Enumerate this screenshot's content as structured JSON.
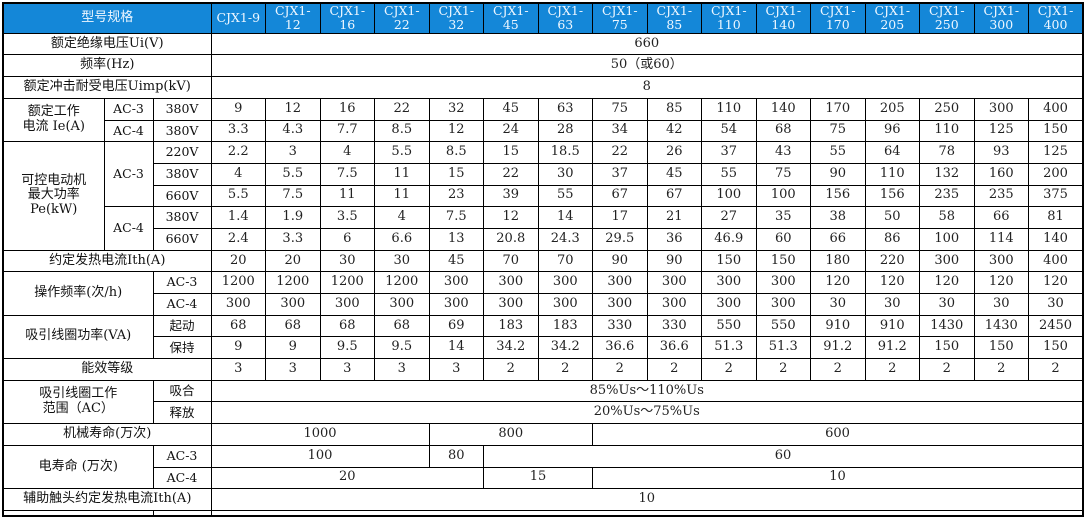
{
  "table": {
    "title_cell": "型号规格",
    "models": [
      "CJX1-9",
      "CJX1-12",
      "CJX1-16",
      "CJX1-22",
      "CJX1-32",
      "CJX1-45",
      "CJX1-63",
      "CJX1-75",
      "CJX1-85",
      "CJX1-110",
      "CJX1-140",
      "CJX1-170",
      "CJX1-205",
      "CJX1-250",
      "CJX1-300",
      "CJX1-400"
    ],
    "header_bg_color": "#1487d8",
    "header_text_color": "#eef7ff",
    "body": [
      [
        {
          "t": "额定绝缘电压Ui(V)",
          "cs": 3,
          "k": "lbl"
        },
        {
          "t": "660",
          "cs": 16
        }
      ],
      [
        {
          "t": "频率(Hz)",
          "cs": 3,
          "k": "lbl"
        },
        {
          "t": "50（或60）",
          "cs": 16
        }
      ],
      [
        {
          "t": "额定冲击耐受电压Uimp(kV)",
          "cs": 3,
          "k": "lbl"
        },
        {
          "t": "8",
          "cs": 16
        }
      ],
      [
        {
          "t": "额定工作\n电流 Ie(A)",
          "rs": 2,
          "k": "lbl"
        },
        {
          "t": "AC-3",
          "k": "sub"
        },
        {
          "t": "380V",
          "k": "sub"
        },
        {
          "t": "9"
        },
        {
          "t": "12"
        },
        {
          "t": "16"
        },
        {
          "t": "22"
        },
        {
          "t": "32"
        },
        {
          "t": "45"
        },
        {
          "t": "63"
        },
        {
          "t": "75"
        },
        {
          "t": "85"
        },
        {
          "t": "110"
        },
        {
          "t": "140"
        },
        {
          "t": "170"
        },
        {
          "t": "205"
        },
        {
          "t": "250"
        },
        {
          "t": "300"
        },
        {
          "t": "400"
        }
      ],
      [
        {
          "t": "AC-4",
          "k": "sub"
        },
        {
          "t": "380V",
          "k": "sub"
        },
        {
          "t": "3.3"
        },
        {
          "t": "4.3"
        },
        {
          "t": "7.7"
        },
        {
          "t": "8.5"
        },
        {
          "t": "12"
        },
        {
          "t": "24"
        },
        {
          "t": "28"
        },
        {
          "t": "34"
        },
        {
          "t": "42"
        },
        {
          "t": "54"
        },
        {
          "t": "68"
        },
        {
          "t": "75"
        },
        {
          "t": "96"
        },
        {
          "t": "110"
        },
        {
          "t": "125"
        },
        {
          "t": "150"
        }
      ],
      [
        {
          "t": "可控电动机\n最大功率\nPe(kW)",
          "rs": 5,
          "k": "lbl"
        },
        {
          "t": "AC-3",
          "rs": 3,
          "k": "sub"
        },
        {
          "t": "220V",
          "k": "sub"
        },
        {
          "t": "2.2"
        },
        {
          "t": "3"
        },
        {
          "t": "4"
        },
        {
          "t": "5.5"
        },
        {
          "t": "8.5"
        },
        {
          "t": "15"
        },
        {
          "t": "18.5"
        },
        {
          "t": "22"
        },
        {
          "t": "26"
        },
        {
          "t": "37"
        },
        {
          "t": "43"
        },
        {
          "t": "55"
        },
        {
          "t": "64"
        },
        {
          "t": "78"
        },
        {
          "t": "93"
        },
        {
          "t": "125"
        }
      ],
      [
        {
          "t": "380V",
          "k": "sub"
        },
        {
          "t": "4"
        },
        {
          "t": "5.5"
        },
        {
          "t": "7.5"
        },
        {
          "t": "11"
        },
        {
          "t": "15"
        },
        {
          "t": "22"
        },
        {
          "t": "30"
        },
        {
          "t": "37"
        },
        {
          "t": "45"
        },
        {
          "t": "55"
        },
        {
          "t": "75"
        },
        {
          "t": "90"
        },
        {
          "t": "110"
        },
        {
          "t": "132"
        },
        {
          "t": "160"
        },
        {
          "t": "200"
        }
      ],
      [
        {
          "t": "660V",
          "k": "sub"
        },
        {
          "t": "5.5"
        },
        {
          "t": "7.5"
        },
        {
          "t": "11"
        },
        {
          "t": "11"
        },
        {
          "t": "23"
        },
        {
          "t": "39"
        },
        {
          "t": "55"
        },
        {
          "t": "67"
        },
        {
          "t": "67"
        },
        {
          "t": "100"
        },
        {
          "t": "100"
        },
        {
          "t": "156"
        },
        {
          "t": "156"
        },
        {
          "t": "235"
        },
        {
          "t": "235"
        },
        {
          "t": "375"
        }
      ],
      [
        {
          "t": "AC-4",
          "rs": 2,
          "k": "sub"
        },
        {
          "t": "380V",
          "k": "sub"
        },
        {
          "t": "1.4"
        },
        {
          "t": "1.9"
        },
        {
          "t": "3.5"
        },
        {
          "t": "4"
        },
        {
          "t": "7.5"
        },
        {
          "t": "12"
        },
        {
          "t": "14"
        },
        {
          "t": "17"
        },
        {
          "t": "21"
        },
        {
          "t": "27"
        },
        {
          "t": "35"
        },
        {
          "t": "38"
        },
        {
          "t": "50"
        },
        {
          "t": "58"
        },
        {
          "t": "66"
        },
        {
          "t": "81"
        }
      ],
      [
        {
          "t": "660V",
          "k": "sub"
        },
        {
          "t": "2.4"
        },
        {
          "t": "3.3"
        },
        {
          "t": "6"
        },
        {
          "t": "6.6"
        },
        {
          "t": "13"
        },
        {
          "t": "20.8"
        },
        {
          "t": "24.3"
        },
        {
          "t": "29.5"
        },
        {
          "t": "36"
        },
        {
          "t": "46.9"
        },
        {
          "t": "60"
        },
        {
          "t": "66"
        },
        {
          "t": "86"
        },
        {
          "t": "100"
        },
        {
          "t": "114"
        },
        {
          "t": "140"
        }
      ],
      [
        {
          "t": "约定发热电流Ith(A)",
          "cs": 3,
          "k": "lbl"
        },
        {
          "t": "20"
        },
        {
          "t": "20"
        },
        {
          "t": "30"
        },
        {
          "t": "30"
        },
        {
          "t": "45"
        },
        {
          "t": "70"
        },
        {
          "t": "70"
        },
        {
          "t": "90"
        },
        {
          "t": "90"
        },
        {
          "t": "150"
        },
        {
          "t": "150"
        },
        {
          "t": "180"
        },
        {
          "t": "220"
        },
        {
          "t": "300"
        },
        {
          "t": "300"
        },
        {
          "t": "400"
        }
      ],
      [
        {
          "t": "操作频率(次/h)",
          "cs": 2,
          "rs": 2,
          "k": "lbl"
        },
        {
          "t": "AC-3",
          "k": "sub"
        },
        {
          "t": "1200"
        },
        {
          "t": "1200"
        },
        {
          "t": "1200"
        },
        {
          "t": "1200"
        },
        {
          "t": "300"
        },
        {
          "t": "300"
        },
        {
          "t": "300"
        },
        {
          "t": "300"
        },
        {
          "t": "300"
        },
        {
          "t": "300"
        },
        {
          "t": "300"
        },
        {
          "t": "120"
        },
        {
          "t": "120"
        },
        {
          "t": "120"
        },
        {
          "t": "120"
        },
        {
          "t": "120"
        }
      ],
      [
        {
          "t": "AC-4",
          "k": "sub"
        },
        {
          "t": "300"
        },
        {
          "t": "300"
        },
        {
          "t": "300"
        },
        {
          "t": "300"
        },
        {
          "t": "300"
        },
        {
          "t": "300"
        },
        {
          "t": "300"
        },
        {
          "t": "300"
        },
        {
          "t": "300"
        },
        {
          "t": "300"
        },
        {
          "t": "300"
        },
        {
          "t": "30"
        },
        {
          "t": "30"
        },
        {
          "t": "30"
        },
        {
          "t": "30"
        },
        {
          "t": "30"
        }
      ],
      [
        {
          "t": "吸引线圈功率(VA)",
          "cs": 2,
          "rs": 2,
          "k": "lbl"
        },
        {
          "t": "起动",
          "k": "sub"
        },
        {
          "t": "68"
        },
        {
          "t": "68"
        },
        {
          "t": "68"
        },
        {
          "t": "68"
        },
        {
          "t": "69"
        },
        {
          "t": "183"
        },
        {
          "t": "183"
        },
        {
          "t": "330"
        },
        {
          "t": "330"
        },
        {
          "t": "550"
        },
        {
          "t": "550"
        },
        {
          "t": "910"
        },
        {
          "t": "910"
        },
        {
          "t": "1430"
        },
        {
          "t": "1430"
        },
        {
          "t": "2450"
        }
      ],
      [
        {
          "t": "保持",
          "k": "sub"
        },
        {
          "t": "9"
        },
        {
          "t": "9"
        },
        {
          "t": "9.5"
        },
        {
          "t": "9.5"
        },
        {
          "t": "14"
        },
        {
          "t": "34.2"
        },
        {
          "t": "34.2"
        },
        {
          "t": "36.6"
        },
        {
          "t": "36.6"
        },
        {
          "t": "51.3"
        },
        {
          "t": "51.3"
        },
        {
          "t": "91.2"
        },
        {
          "t": "91.2"
        },
        {
          "t": "150"
        },
        {
          "t": "150"
        },
        {
          "t": "150"
        }
      ],
      [
        {
          "t": "能效等级",
          "cs": 3,
          "k": "lbl"
        },
        {
          "t": "3"
        },
        {
          "t": "3"
        },
        {
          "t": "3"
        },
        {
          "t": "3"
        },
        {
          "t": "3"
        },
        {
          "t": "2"
        },
        {
          "t": "2"
        },
        {
          "t": "2"
        },
        {
          "t": "2"
        },
        {
          "t": "2"
        },
        {
          "t": "2"
        },
        {
          "t": "2"
        },
        {
          "t": "2"
        },
        {
          "t": "2"
        },
        {
          "t": "2"
        },
        {
          "t": "2"
        }
      ],
      [
        {
          "t": "吸引线圈工作\n范围（AC）",
          "cs": 2,
          "rs": 2,
          "k": "lbl"
        },
        {
          "t": "吸合",
          "k": "sub"
        },
        {
          "t": "85%Us～110%Us",
          "cs": 16
        }
      ],
      [
        {
          "t": "释放",
          "k": "sub"
        },
        {
          "t": "20%Us～75%Us",
          "cs": 16
        }
      ],
      [
        {
          "t": "机械寿命(万次)",
          "cs": 3,
          "k": "lbl"
        },
        {
          "t": "1000",
          "cs": 4
        },
        {
          "t": "800",
          "cs": 3
        },
        {
          "t": "600",
          "cs": 9
        }
      ],
      [
        {
          "t": "电寿命 (万次)",
          "cs": 2,
          "rs": 2,
          "k": "lbl"
        },
        {
          "t": "AC-3",
          "k": "sub"
        },
        {
          "t": "100",
          "cs": 4
        },
        {
          "t": "80",
          "cs": 1
        },
        {
          "t": "60",
          "cs": 11
        }
      ],
      [
        {
          "t": "AC-4",
          "k": "sub"
        },
        {
          "t": "20",
          "cs": 5
        },
        {
          "t": "15",
          "cs": 2
        },
        {
          "t": "10",
          "cs": 9
        }
      ],
      [
        {
          "t": "辅助触头约定发热电流Ith(A)",
          "cs": 3,
          "k": "lbl"
        },
        {
          "t": "10",
          "cs": 16
        }
      ],
      [
        {
          "t": "",
          "cs": 2,
          "k": "lbl",
          "partial": true
        },
        {
          "t": "",
          "k": "sub"
        },
        {
          "t": "",
          "cs": 16
        }
      ]
    ]
  }
}
